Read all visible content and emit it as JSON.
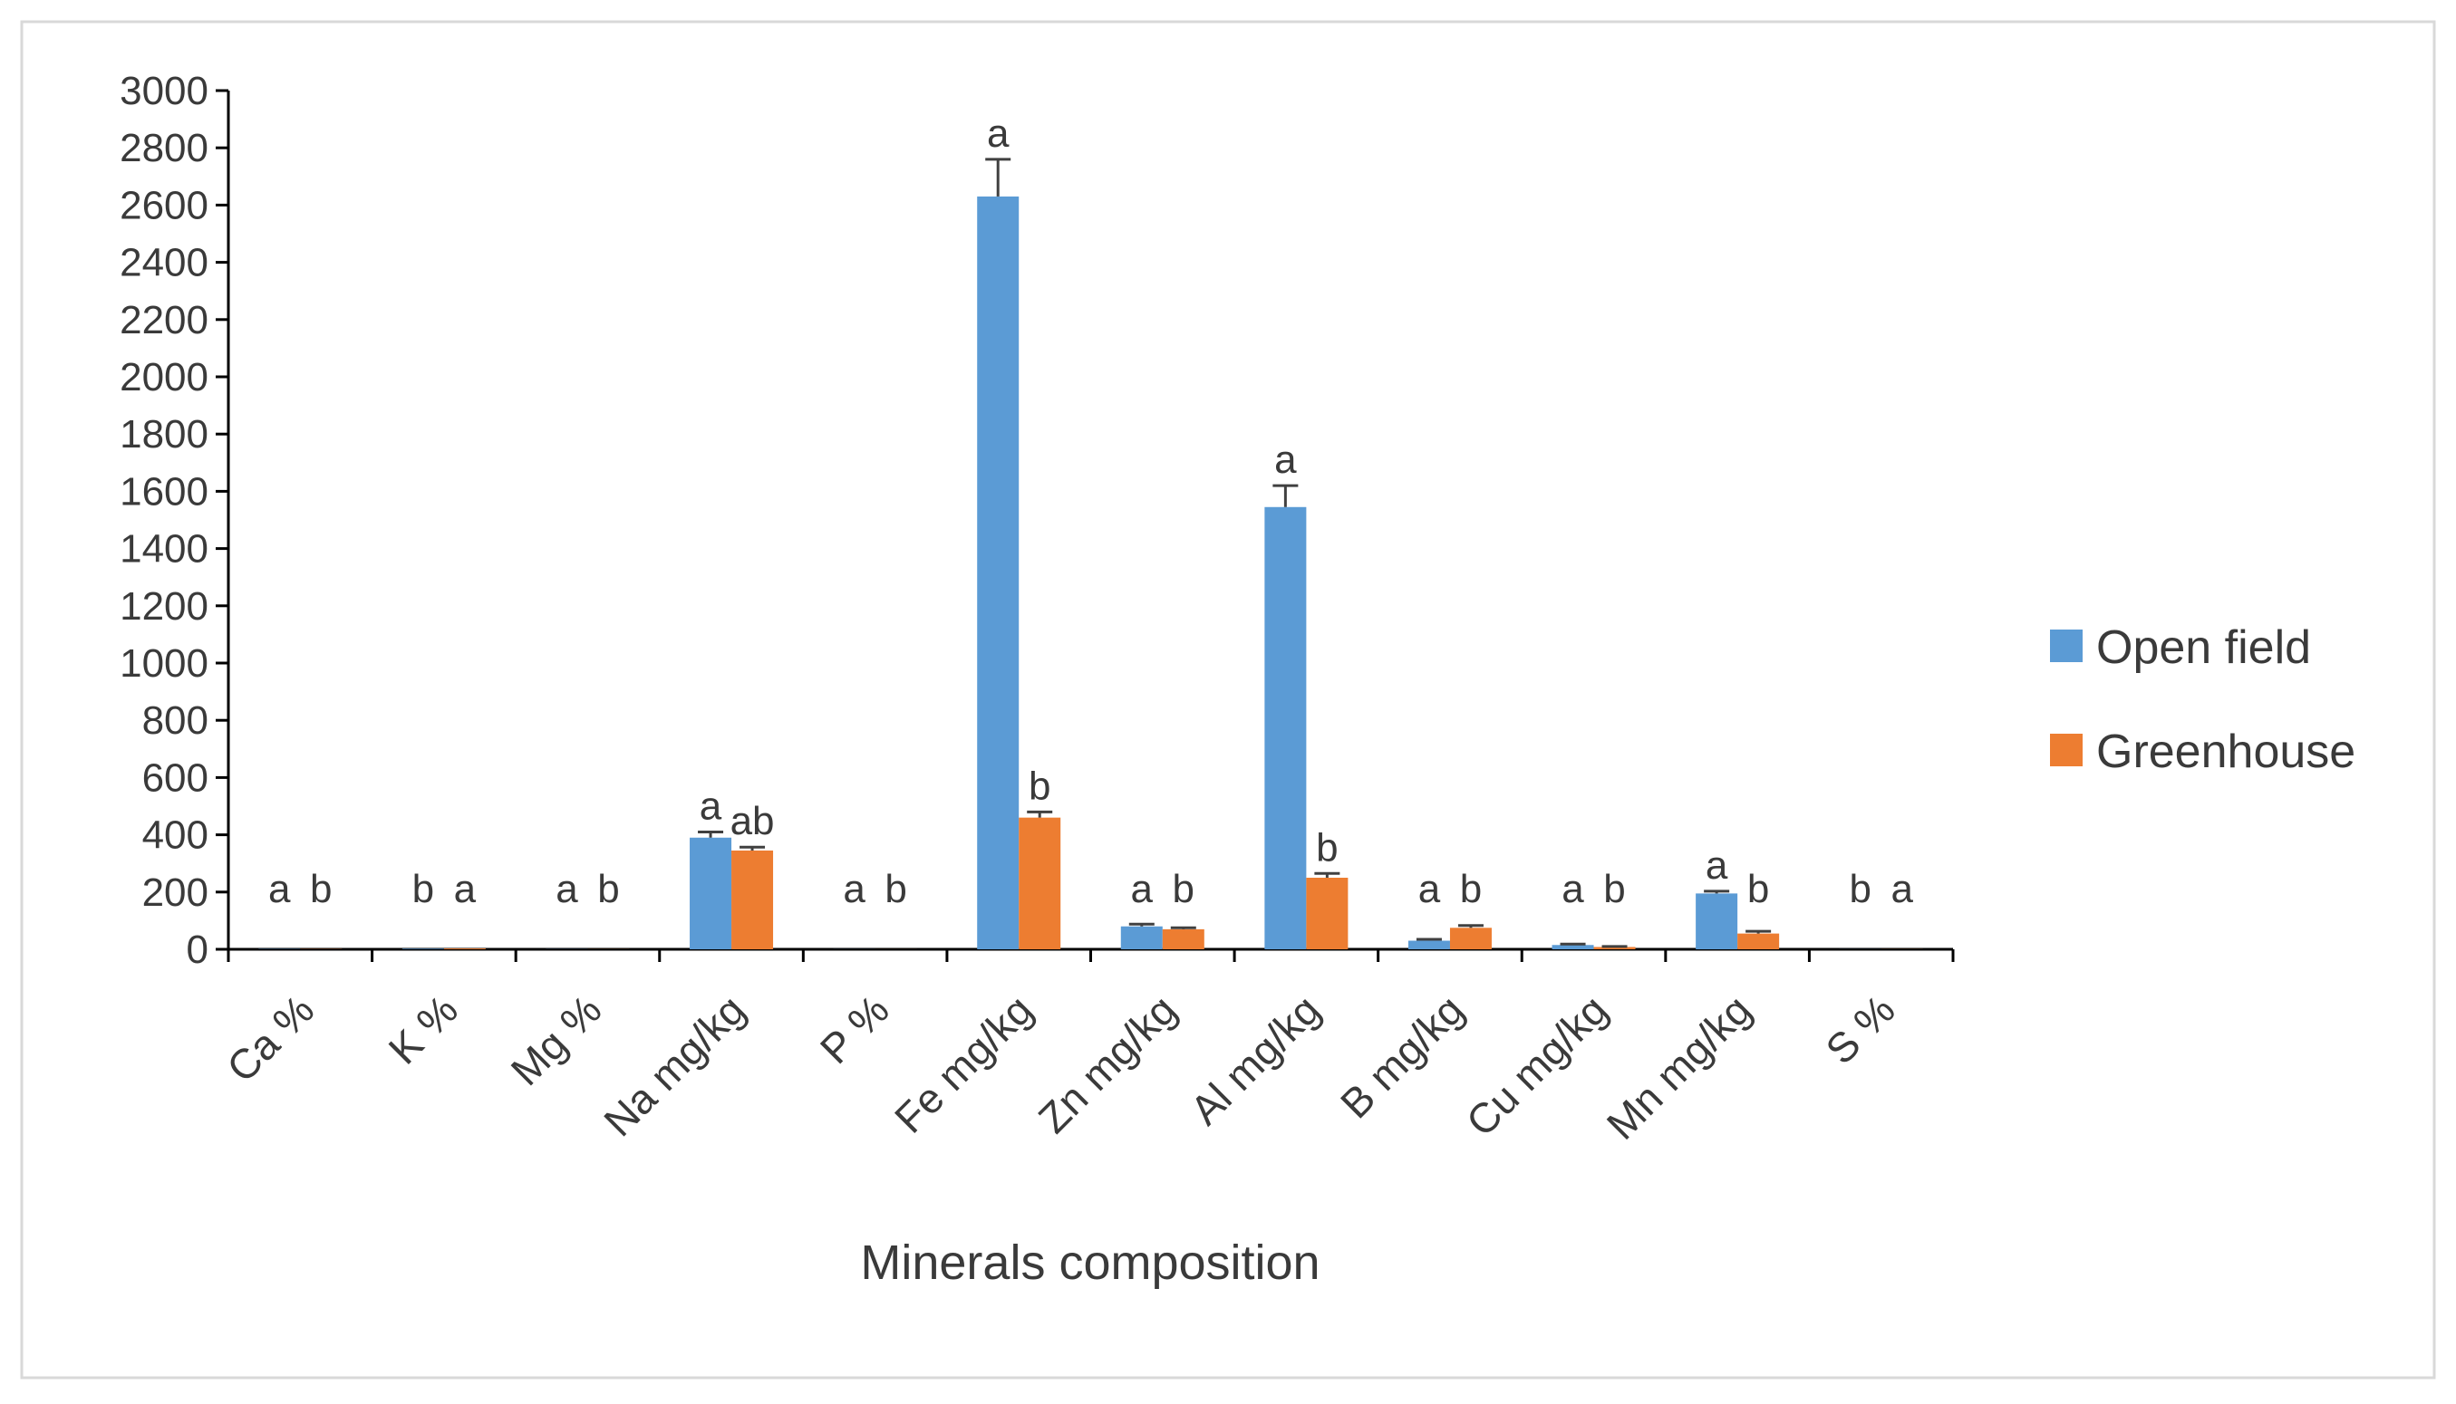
{
  "chart_data": {
    "type": "bar",
    "title": "",
    "xlabel": "Minerals composition",
    "ylabel": "",
    "ylim": [
      0,
      3000
    ],
    "yticks": [
      0,
      200,
      400,
      600,
      800,
      1000,
      1200,
      1400,
      1600,
      1800,
      2000,
      2200,
      2400,
      2600,
      2800,
      3000
    ],
    "categories": [
      "Ca %",
      "K %",
      "Mg %",
      "Na mg/kg",
      "P %",
      "Fe mg/kg",
      "Zn mg/kg",
      "Al mg/kg",
      "B mg/kg",
      "Cu mg/kg",
      "Mn mg/kg",
      "S %"
    ],
    "series": [
      {
        "name": "Open field",
        "color": "#5B9BD5",
        "values": [
          1,
          2,
          0.5,
          390,
          0.3,
          2630,
          80,
          1545,
          30,
          15,
          195,
          0.3
        ],
        "errors": [
          0,
          0,
          0,
          20,
          0,
          130,
          8,
          75,
          5,
          3,
          8,
          0
        ],
        "significance": [
          "a",
          "b",
          "a",
          "a",
          "a",
          "a",
          "a",
          "a",
          "a",
          "a",
          "a",
          "b"
        ]
      },
      {
        "name": "Greenhouse",
        "color": "#ED7D31",
        "values": [
          0.8,
          3,
          0.4,
          345,
          0.2,
          460,
          70,
          250,
          75,
          8,
          55,
          0.4
        ],
        "errors": [
          0,
          0,
          0,
          12,
          0,
          20,
          5,
          15,
          8,
          2,
          8,
          0
        ],
        "significance": [
          "b",
          "a",
          "b",
          "ab",
          "b",
          "b",
          "b",
          "b",
          "b",
          "b",
          "b",
          "a"
        ]
      }
    ],
    "legend_position": "right",
    "grid": false
  }
}
